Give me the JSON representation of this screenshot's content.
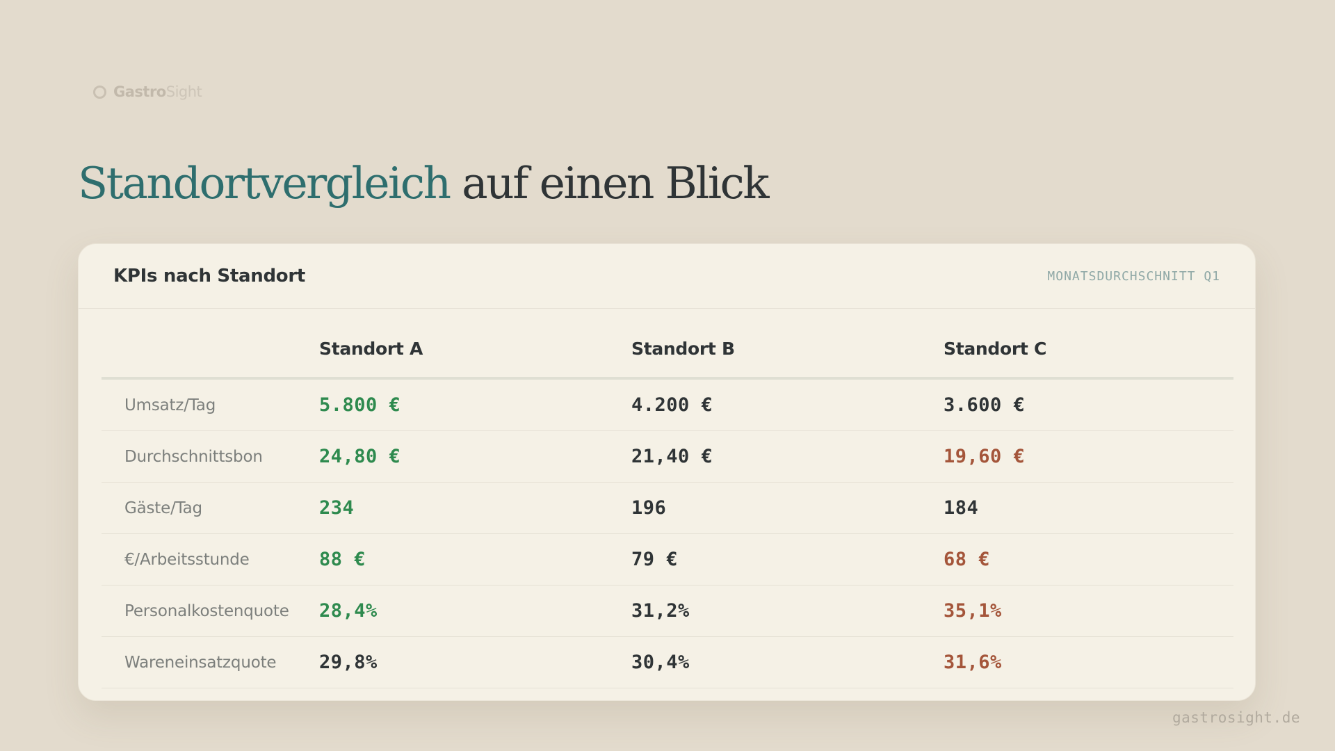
{
  "brand": {
    "name_strong": "Gastro",
    "name_light": "Sight"
  },
  "headline": {
    "accent": "Standortvergleich",
    "rest": " auf einen Blick"
  },
  "card": {
    "title": "KPIs nach Standort",
    "subtitle": "MONATSDURCHSCHNITT Q1"
  },
  "table": {
    "columns": [
      "",
      "Standort A",
      "Standort B",
      "Standort C"
    ],
    "rows": [
      {
        "label": "Umsatz/Tag",
        "a": "5.800 €",
        "b": "4.200 €",
        "c": "3.600 €"
      },
      {
        "label": "Durchschnittsbon",
        "a": "24,80 €",
        "b": "21,40 €",
        "c": "19,60 €"
      },
      {
        "label": "Gäste/Tag",
        "a": "234",
        "b": "196",
        "c": "184"
      },
      {
        "label": "€/Arbeitsstunde",
        "a": "88 €",
        "b": "79 €",
        "c": "68 €"
      },
      {
        "label": "Personalkostenquote",
        "a": "28,4%",
        "b": "31,2%",
        "c": "35,1%"
      },
      {
        "label": "Wareneinsatzquote",
        "a": "29,8%",
        "b": "30,4%",
        "c": "31,6%"
      }
    ]
  },
  "colors": {
    "accent": "#2e6e6e",
    "good": "#2e8a4e",
    "bad": "#a4553a",
    "neutral": "#2f3436",
    "background": "#e3dbcd",
    "card": "#f5f1e6"
  },
  "footer": {
    "url": "gastrosight.de"
  }
}
